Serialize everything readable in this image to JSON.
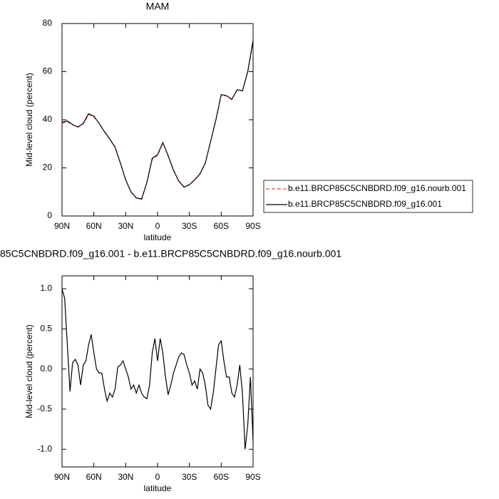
{
  "chart_data": [
    {
      "type": "line",
      "title": "MAM",
      "x_label": "latitude",
      "y_label": "Mid-level cloud (percent)",
      "x": [
        90,
        85,
        80,
        75,
        70,
        65,
        60,
        55,
        50,
        45,
        40,
        35,
        30,
        25,
        20,
        15,
        10,
        5,
        0,
        -5,
        -10,
        -15,
        -20,
        -25,
        -30,
        -35,
        -40,
        -45,
        -50,
        -55,
        -60,
        -65,
        -70,
        -75,
        -80,
        -85,
        -90
      ],
      "series": [
        {
          "name": "b.e11.BRCP85C5CNBDRD.f09_g16.nourb.001",
          "color": "#e8453c",
          "linestyle": "dashed",
          "values": [
            38.5,
            39.2,
            37.9,
            36.9,
            38.3,
            42.2,
            41.2,
            38.5,
            35,
            32,
            28.7,
            22.1,
            15,
            10,
            7.6,
            7.2,
            14,
            23.6,
            25.2,
            30.3,
            25.2,
            19.2,
            14.6,
            12.1,
            13.1,
            15.1,
            17.6,
            22.1,
            31,
            40,
            50.2,
            49.9,
            48.4,
            52.4,
            52.1,
            60,
            72.2
          ]
        },
        {
          "name": "b.e11.BRCP85C5CNBDRD.f09_g16.001",
          "color": "#000000",
          "linestyle": "solid",
          "values": [
            39,
            39.5,
            38,
            37,
            38.5,
            42.5,
            41.5,
            38.5,
            35,
            32,
            28.5,
            22,
            15,
            10,
            7.5,
            7,
            14,
            24,
            25.5,
            30.5,
            25,
            19,
            14.5,
            12,
            13,
            15,
            17.5,
            22,
            31,
            40,
            50.5,
            50,
            48.5,
            52.5,
            52,
            60,
            73
          ]
        }
      ],
      "xlim": [
        90,
        -90
      ],
      "xticks": [
        {
          "value": 90,
          "label": "90N"
        },
        {
          "value": 60,
          "label": "60N"
        },
        {
          "value": 30,
          "label": "30N"
        },
        0,
        {
          "value": -30,
          "label": "30S"
        },
        {
          "value": -60,
          "label": "60S"
        },
        {
          "value": -90,
          "label": "90S"
        }
      ],
      "ylim": [
        0,
        80
      ],
      "yticks": [
        0,
        20,
        40,
        60,
        80
      ],
      "legend": "right"
    },
    {
      "type": "line",
      "title": "85C5CNBDRD.f09_g16.001 - b.e11.BRCP85C5CNBDRD.f09_g16.nourb.001",
      "x_label": "latitude",
      "y_label": "Mid-level cloud (percent)",
      "x": [
        90,
        87.5,
        85,
        82.5,
        80,
        77.5,
        75,
        72.5,
        70,
        67.5,
        65,
        62.5,
        60,
        57.5,
        55,
        52.5,
        50,
        47.5,
        45,
        42.5,
        40,
        37.5,
        35,
        32.5,
        30,
        27.5,
        25,
        22.5,
        20,
        17.5,
        15,
        12.5,
        10,
        7.5,
        5,
        2.5,
        0,
        -2.5,
        -5,
        -7.5,
        -10,
        -12.5,
        -15,
        -17.5,
        -20,
        -22.5,
        -25,
        -27.5,
        -30,
        -32.5,
        -35,
        -37.5,
        -40,
        -42.5,
        -45,
        -47.5,
        -50,
        -52.5,
        -55,
        -57.5,
        -60,
        -62.5,
        -65,
        -67.5,
        -70,
        -72.5,
        -75,
        -77.5,
        -80,
        -82.5,
        -85,
        -87.5,
        -90
      ],
      "series": [
        {
          "color": "#000000",
          "linestyle": "solid",
          "values": [
            1.0,
            0.88,
            0.3,
            -0.28,
            0.08,
            0.12,
            0.05,
            -0.2,
            0.05,
            0.1,
            0.3,
            0.43,
            0.2,
            0.0,
            -0.05,
            -0.05,
            -0.25,
            -0.4,
            -0.3,
            -0.35,
            -0.25,
            0.02,
            0.05,
            0.1,
            0.0,
            -0.1,
            -0.25,
            -0.2,
            -0.3,
            -0.2,
            -0.3,
            -0.35,
            -0.37,
            -0.2,
            0.2,
            0.38,
            0.1,
            0.38,
            0.2,
            -0.1,
            -0.32,
            -0.2,
            -0.05,
            0.05,
            0.15,
            0.2,
            0.18,
            0.05,
            -0.05,
            -0.2,
            -0.15,
            -0.25,
            0.0,
            -0.05,
            -0.2,
            -0.45,
            -0.5,
            -0.3,
            0.0,
            0.3,
            0.35,
            0.1,
            -0.1,
            -0.1,
            -0.3,
            -0.35,
            -0.2,
            0.05,
            -0.3,
            -1.0,
            -0.7,
            -0.1,
            -0.9
          ]
        }
      ],
      "xlim": [
        90,
        -90
      ],
      "xticks": [
        {
          "value": 90,
          "label": "90N"
        },
        {
          "value": 60,
          "label": "60N"
        },
        {
          "value": 30,
          "label": "30N"
        },
        0,
        {
          "value": -30,
          "label": "30S"
        },
        {
          "value": -60,
          "label": "60S"
        },
        {
          "value": -90,
          "label": "90S"
        }
      ],
      "ylim": [
        -1.22,
        1.16
      ],
      "yticks": [
        {
          "value": -1,
          "label": "-1.0"
        },
        -0.5,
        {
          "value": 0,
          "label": "0.0"
        },
        0.5,
        {
          "value": 1,
          "label": "1.0"
        }
      ]
    }
  ]
}
